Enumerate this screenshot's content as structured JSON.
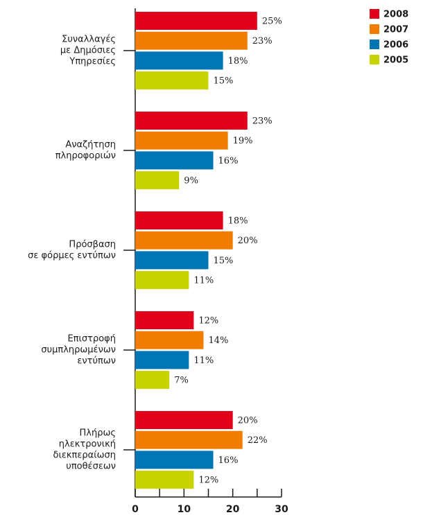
{
  "chart_data": {
    "type": "hbar",
    "categories": [
      [
        "Συναλλαγές",
        "με Δημόσιες",
        "Υπηρεσίες"
      ],
      [
        "Αναζήτηση",
        "πληροφοριών"
      ],
      [
        "Πρόσβαση",
        "σε φόρμες εντύπων"
      ],
      [
        "Επιστροφή",
        "συμπληρωμένων",
        "εντύπων"
      ],
      [
        "Πλήρως",
        "ηλεκτρονική",
        "διεκπεραίωση",
        "υποθέσεων"
      ]
    ],
    "series": [
      {
        "name": "2008",
        "color": "#e2001a",
        "values": [
          25,
          23,
          18,
          12,
          20
        ],
        "value_labels": [
          "25%",
          "23%",
          "18%",
          "12%",
          "20%"
        ]
      },
      {
        "name": "2007",
        "color": "#f07d00",
        "values": [
          23,
          19,
          20,
          14,
          22
        ],
        "value_labels": [
          "23%",
          "19%",
          "20%",
          "14%",
          "22%"
        ]
      },
      {
        "name": "2006",
        "color": "#0075b4",
        "values": [
          18,
          16,
          15,
          11,
          16
        ],
        "value_labels": [
          "18%",
          "16%",
          "15%",
          "11%",
          "16%"
        ]
      },
      {
        "name": "2005",
        "color": "#c8d400",
        "values": [
          15,
          9,
          11,
          7,
          12
        ],
        "value_labels": [
          "15%",
          "9%",
          "11%",
          "7%",
          "12%"
        ]
      }
    ],
    "xlim": [
      0,
      30
    ],
    "xticks": [
      0,
      10,
      20,
      30
    ],
    "xminorticks": [
      5,
      15,
      25
    ],
    "legend": "top-right"
  }
}
